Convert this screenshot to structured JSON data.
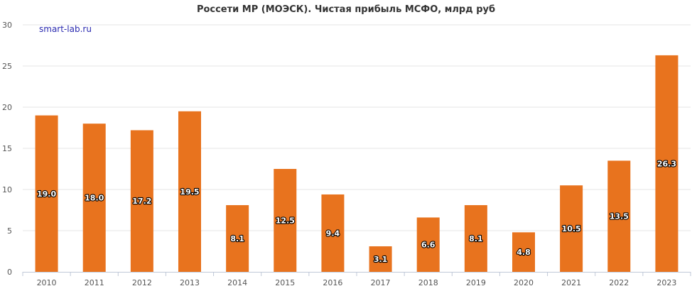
{
  "chart_data": {
    "type": "bar",
    "title": "Россети МР (МОЭСК). Чистая прибыль МСФО, млрд руб",
    "watermark": "smart-lab.ru",
    "categories": [
      "2010",
      "2011",
      "2012",
      "2013",
      "2014",
      "2015",
      "2016",
      "2017",
      "2018",
      "2019",
      "2020",
      "2021",
      "2022",
      "2023"
    ],
    "values": [
      19.0,
      18.0,
      17.2,
      19.5,
      8.1,
      12.5,
      9.4,
      3.1,
      6.6,
      8.1,
      4.8,
      10.5,
      13.5,
      26.3
    ],
    "value_labels": [
      "19.0",
      "18.0",
      "17.2",
      "19.5",
      "8.1",
      "12.5",
      "9.4",
      "3.1",
      "6.6",
      "8.1",
      "4.8",
      "10.5",
      "13.5",
      "26.3"
    ],
    "ylim": [
      0,
      30
    ],
    "yticks": [
      "0",
      "5",
      "10",
      "15",
      "20",
      "25",
      "30"
    ],
    "xlabel": "",
    "ylabel": "",
    "grid": true,
    "colors": {
      "bar": "#e8731e",
      "grid": "#e6e6e6",
      "axis": "#c0c8d8"
    }
  }
}
